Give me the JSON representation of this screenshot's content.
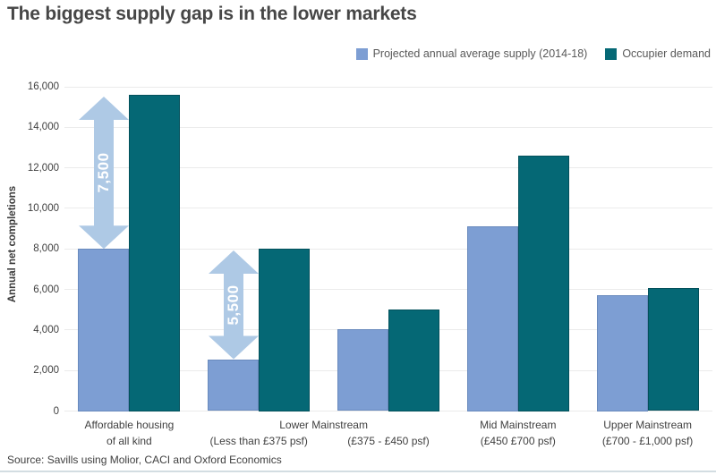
{
  "title": "The biggest supply gap is in the lower markets",
  "source": "Source: Savills using Molior, CACI and Oxford Economics",
  "legend": {
    "items": [
      {
        "label": "Projected annual average supply (2014-18)",
        "color": "#7d9ed3"
      },
      {
        "label": "Occupier demand",
        "color": "#056875"
      }
    ]
  },
  "chart_data": {
    "type": "bar",
    "title": "The biggest supply gap is in the lower markets",
    "xlabel": "",
    "ylabel": "Annual net completions",
    "ylim": [
      0,
      16000
    ],
    "ytick_step": 2000,
    "ytick_labels": [
      "0",
      "2,000",
      "4,000",
      "6,000",
      "8,000",
      "10,000",
      "12,000",
      "14,000",
      "16,000"
    ],
    "grid": true,
    "legend_position": "top-right",
    "categories": [
      "Affordable housing of all kind",
      "Lower Mainstream (Less than £375 psf)",
      "Lower Mainstream (£375 - £450 psf)",
      "Mid Mainstream (£450 £700 psf)",
      "Upper Mainstream (£700 - £1,000 psf)"
    ],
    "series": [
      {
        "name": "Projected annual average supply (2014-18)",
        "color": "#7d9ed3",
        "values": [
          8000,
          2550,
          4050,
          9100,
          5700
        ]
      },
      {
        "name": "Occupier demand",
        "color": "#056875",
        "values": [
          15600,
          8000,
          5000,
          12600,
          6050
        ]
      }
    ],
    "annotations": [
      {
        "label": "7,500",
        "column": 0,
        "from_value": 8000,
        "to_value": 15600,
        "color": "#aec9e5",
        "text_color": "#ffffff"
      },
      {
        "label": "5,500",
        "column": 1,
        "from_value": 2550,
        "to_value": 8000,
        "color": "#aec9e5",
        "text_color": "#ffffff"
      }
    ],
    "x_axis_labels": {
      "main_row": [
        {
          "text": "Affordable housing",
          "start_col": 0,
          "span": 1
        },
        {
          "text": "Lower Mainstream",
          "start_col": 1,
          "span": 2
        },
        {
          "text": "Mid Mainstream",
          "start_col": 3,
          "span": 1
        },
        {
          "text": "Upper Mainstream",
          "start_col": 4,
          "span": 1
        }
      ],
      "sub_row": [
        {
          "text": "of all kind",
          "col": 0
        },
        {
          "text": "(Less than £375 psf)",
          "col": 1
        },
        {
          "text": "(£375 - £450 psf)",
          "col": 2
        },
        {
          "text": "(£450 £700 psf)",
          "col": 3
        },
        {
          "text": "(£700 - £1,000 psf)",
          "col": 4
        }
      ]
    }
  },
  "colors": {
    "gridline": "#ebebeb",
    "axis_text": "#3f3f3f",
    "divider": "#d3dde2"
  }
}
